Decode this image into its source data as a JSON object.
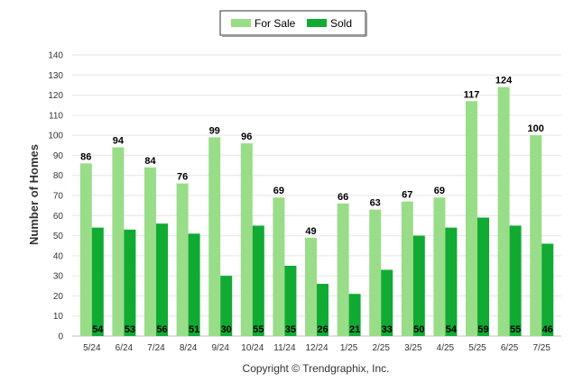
{
  "chart_data": {
    "type": "bar",
    "categories": [
      "5/24",
      "6/24",
      "7/24",
      "8/24",
      "9/24",
      "10/24",
      "11/24",
      "12/24",
      "1/25",
      "2/25",
      "3/25",
      "4/25",
      "5/25",
      "6/25",
      "7/25"
    ],
    "series": [
      {
        "name": "For Sale",
        "color": "#99dd88",
        "values": [
          86,
          94,
          84,
          76,
          99,
          96,
          69,
          49,
          66,
          63,
          67,
          69,
          117,
          124,
          100
        ]
      },
      {
        "name": "Sold",
        "color": "#11aa33",
        "values": [
          54,
          53,
          56,
          51,
          30,
          55,
          35,
          26,
          21,
          33,
          50,
          54,
          59,
          55,
          46
        ]
      }
    ],
    "ylabel": "Number of Homes",
    "xlabel": "",
    "ylim": [
      0,
      140
    ],
    "yticks": [
      0,
      10,
      20,
      30,
      40,
      50,
      60,
      70,
      80,
      90,
      100,
      110,
      120,
      130,
      140
    ],
    "grid": true,
    "legend": "top-center",
    "credit": "Copyright © Trendgraphix, Inc."
  }
}
